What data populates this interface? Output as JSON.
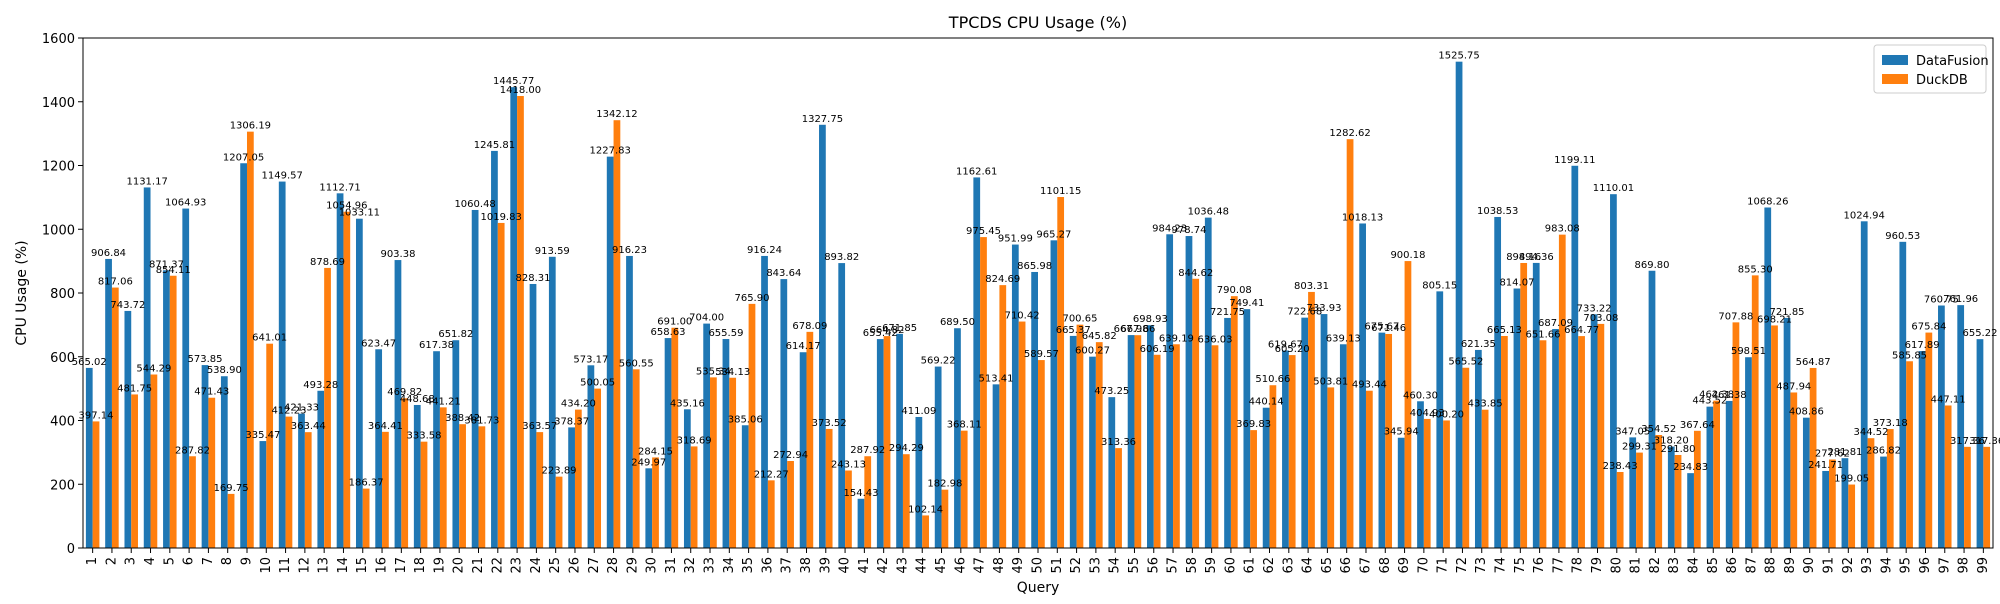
{
  "chart_data": {
    "type": "bar",
    "title": "TPCDS CPU Usage (%)",
    "xlabel": "Query",
    "ylabel": "CPU Usage (%)",
    "ylim": [
      0,
      1600
    ],
    "yticks": [
      0,
      200,
      400,
      600,
      800,
      1000,
      1200,
      1400,
      1600
    ],
    "grid": false,
    "legend_position": "top-right",
    "categories": [
      "1",
      "2",
      "3",
      "4",
      "5",
      "6",
      "7",
      "8",
      "9",
      "10",
      "11",
      "12",
      "13",
      "14",
      "15",
      "16",
      "17",
      "18",
      "19",
      "20",
      "21",
      "22",
      "23",
      "24",
      "25",
      "26",
      "27",
      "28",
      "29",
      "30",
      "31",
      "32",
      "33",
      "34",
      "35",
      "36",
      "37",
      "38",
      "39",
      "40",
      "41",
      "42",
      "43",
      "44",
      "45",
      "46",
      "47",
      "48",
      "49",
      "50",
      "51",
      "52",
      "53",
      "54",
      "55",
      "56",
      "57",
      "58",
      "59",
      "60",
      "61",
      "62",
      "63",
      "64",
      "65",
      "66",
      "67",
      "68",
      "69",
      "70",
      "71",
      "72",
      "73",
      "74",
      "75",
      "76",
      "77",
      "78",
      "79",
      "80",
      "81",
      "82",
      "83",
      "84",
      "85",
      "86",
      "87",
      "88",
      "89",
      "90",
      "91",
      "92",
      "93",
      "94",
      "95",
      "96",
      "97",
      "98",
      "99"
    ],
    "series": [
      {
        "name": "DataFusion",
        "color": "#1f77b4",
        "values": [
          565.02,
          906.84,
          743.72,
          1131.17,
          871.37,
          1064.93,
          573.85,
          538.9,
          1207.05,
          335.47,
          1149.57,
          421.33,
          493.28,
          1112.71,
          1033.11,
          623.47,
          903.38,
          448.68,
          617.38,
          651.82,
          1060.48,
          1245.81,
          1445.77,
          828.31,
          913.59,
          378.37,
          573.17,
          1227.83,
          916.23,
          249.97,
          658.63,
          435.16,
          704.0,
          655.59,
          385.06,
          916.24,
          843.64,
          614.17,
          1327.75,
          893.82,
          154.43,
          655.42,
          671.85,
          411.09,
          569.22,
          689.5,
          1162.61,
          513.41,
          951.99,
          865.98,
          965.27,
          665.37,
          600.27,
          473.25,
          667.98,
          698.93,
          984.23,
          978.74,
          1036.48,
          721.75,
          749.41,
          440.14,
          619.67,
          722.68,
          733.93,
          639.13,
          1018.13,
          675.67,
          345.94,
          460.3,
          805.15,
          1525.75,
          621.35,
          1038.53,
          814.07,
          894.36,
          687.09,
          1199.11,
          733.22,
          1110.01,
          347.05,
          869.8,
          318.2,
          234.83,
          443.52,
          461.38,
          598.51,
          1068.26,
          721.85,
          408.86,
          241.71,
          281.81,
          1024.94,
          286.82,
          960.53,
          617.89,
          760.75,
          761.96,
          655.22
        ]
      },
      {
        "name": "DuckDB",
        "color": "#ff7f0e",
        "values": [
          397.14,
          817.06,
          481.75,
          544.29,
          854.11,
          287.82,
          471.43,
          169.75,
          1306.19,
          641.01,
          412.23,
          363.44,
          878.69,
          1054.96,
          186.37,
          364.41,
          469.82,
          333.58,
          441.21,
          388.42,
          381.73,
          1019.83,
          1418.0,
          363.57,
          223.89,
          434.2,
          500.05,
          1342.12,
          560.55,
          284.15,
          691.0,
          318.69,
          535.34,
          534.13,
          765.9,
          212.27,
          272.94,
          678.09,
          373.52,
          243.13,
          287.92,
          664.82,
          294.29,
          102.14,
          182.98,
          368.11,
          975.45,
          824.69,
          710.42,
          589.57,
          1101.15,
          700.65,
          645.82,
          313.36,
          667.66,
          606.19,
          639.19,
          844.62,
          636.03,
          790.08,
          369.83,
          510.66,
          605.2,
          803.31,
          503.81,
          1282.62,
          493.44,
          671.46,
          900.18,
          404.93,
          400.2,
          565.52,
          433.85,
          665.13,
          894.16,
          651.66,
          983.08,
          664.77,
          703.08,
          238.43,
          299.31,
          354.52,
          291.8,
          367.64,
          462.38,
          707.88,
          855.3,
          698.21,
          487.94,
          564.87,
          277.62,
          199.05,
          344.52,
          373.18,
          585.85,
          675.84,
          447.11,
          317.36,
          317.36
        ]
      }
    ]
  }
}
